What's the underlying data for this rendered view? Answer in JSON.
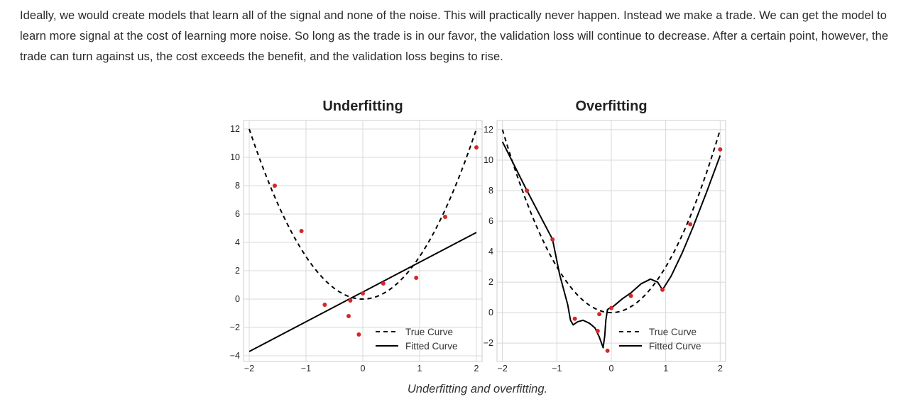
{
  "paragraph": "Ideally, we would create models that learn all of the signal and none of the noise. This will practically never happen. Instead we make a trade. We can get the model to learn more signal at the cost of learning more noise. So long as the trade is in our favor, the validation loss will continue to decrease. After a certain point, however, the trade can turn against us, the cost exceeds the benefit, and the validation loss begins to rise.",
  "caption": "Underfitting and overfitting.",
  "colors": {
    "true_curve": "#000000",
    "fitted_curve": "#000000",
    "points": "#d62728",
    "grid": "#d8d8d8"
  },
  "chart_data": [
    {
      "type": "line",
      "title": "Underfitting",
      "xlabel": "",
      "ylabel": "",
      "xlim": [
        -2.1,
        2.1
      ],
      "ylim": [
        -4.4,
        12.6
      ],
      "xticks": [
        -2,
        -1,
        0,
        1,
        2
      ],
      "xtick_labels": [
        "−2",
        "−1",
        "0",
        "1",
        "2"
      ],
      "yticks": [
        -4,
        -2,
        0,
        2,
        4,
        6,
        8,
        10,
        12
      ],
      "ytick_labels": [
        "−4",
        "−2",
        "0",
        "2",
        "4",
        "6",
        "8",
        "10",
        "12"
      ],
      "legend": [
        "True Curve",
        "Fitted Curve"
      ],
      "legend_position": "lower-right",
      "series": [
        {
          "name": "True Curve",
          "style": "dashed",
          "function": "3x^2",
          "x_range": [
            -2,
            2
          ]
        },
        {
          "name": "Fitted Curve",
          "style": "solid",
          "x": [
            -2,
            2
          ],
          "y": [
            -3.7,
            4.7
          ]
        }
      ],
      "points": [
        {
          "x": -1.55,
          "y": 8.0
        },
        {
          "x": -1.08,
          "y": 4.8
        },
        {
          "x": -0.67,
          "y": -0.4
        },
        {
          "x": -0.25,
          "y": -1.2
        },
        {
          "x": -0.22,
          "y": -0.1
        },
        {
          "x": -0.07,
          "y": -2.5
        },
        {
          "x": 0.0,
          "y": 0.4
        },
        {
          "x": 0.36,
          "y": 1.1
        },
        {
          "x": 0.94,
          "y": 1.5
        },
        {
          "x": 1.45,
          "y": 5.8
        },
        {
          "x": 2.0,
          "y": 10.7
        }
      ]
    },
    {
      "type": "line",
      "title": "Overfitting",
      "xlabel": "",
      "ylabel": "",
      "xlim": [
        -2.1,
        2.1
      ],
      "ylim": [
        -3.2,
        12.6
      ],
      "xticks": [
        -2,
        -1,
        0,
        1,
        2
      ],
      "xtick_labels": [
        "−2",
        "−1",
        "0",
        "1",
        "2"
      ],
      "yticks": [
        -2,
        0,
        2,
        4,
        6,
        8,
        10,
        12
      ],
      "ytick_labels": [
        "−2",
        "0",
        "2",
        "4",
        "6",
        "8",
        "10",
        "12"
      ],
      "legend": [
        "True Curve",
        "Fitted Curve"
      ],
      "legend_position": "lower-right",
      "series": [
        {
          "name": "True Curve",
          "style": "dashed",
          "function": "3x^2",
          "x_range": [
            -2,
            2
          ]
        },
        {
          "name": "Fitted Curve",
          "style": "solid",
          "x": [
            -2.0,
            -1.55,
            -1.08,
            -0.95,
            -0.8,
            -0.75,
            -0.7,
            -0.62,
            -0.52,
            -0.4,
            -0.3,
            -0.22,
            -0.15,
            -0.12,
            -0.1,
            -0.07,
            -0.03,
            0.0,
            0.2,
            0.36,
            0.55,
            0.72,
            0.85,
            0.94,
            1.1,
            1.3,
            1.5,
            1.75,
            2.0
          ],
          "y": [
            11.2,
            8.0,
            4.8,
            2.5,
            0.5,
            -0.5,
            -0.8,
            -0.6,
            -0.5,
            -0.7,
            -1.0,
            -1.6,
            -2.3,
            -1.5,
            -0.5,
            0.2,
            0.3,
            0.3,
            0.9,
            1.3,
            1.9,
            2.2,
            2.0,
            1.5,
            2.4,
            3.9,
            5.6,
            7.9,
            10.3
          ]
        }
      ],
      "points": [
        {
          "x": -1.55,
          "y": 8.0
        },
        {
          "x": -1.08,
          "y": 4.8
        },
        {
          "x": -0.67,
          "y": -0.4
        },
        {
          "x": -0.25,
          "y": -1.2
        },
        {
          "x": -0.22,
          "y": -0.1
        },
        {
          "x": -0.07,
          "y": -2.5
        },
        {
          "x": 0.0,
          "y": 0.3
        },
        {
          "x": 0.36,
          "y": 1.1
        },
        {
          "x": 0.94,
          "y": 1.5
        },
        {
          "x": 1.45,
          "y": 5.8
        },
        {
          "x": 2.0,
          "y": 10.7
        }
      ]
    }
  ]
}
